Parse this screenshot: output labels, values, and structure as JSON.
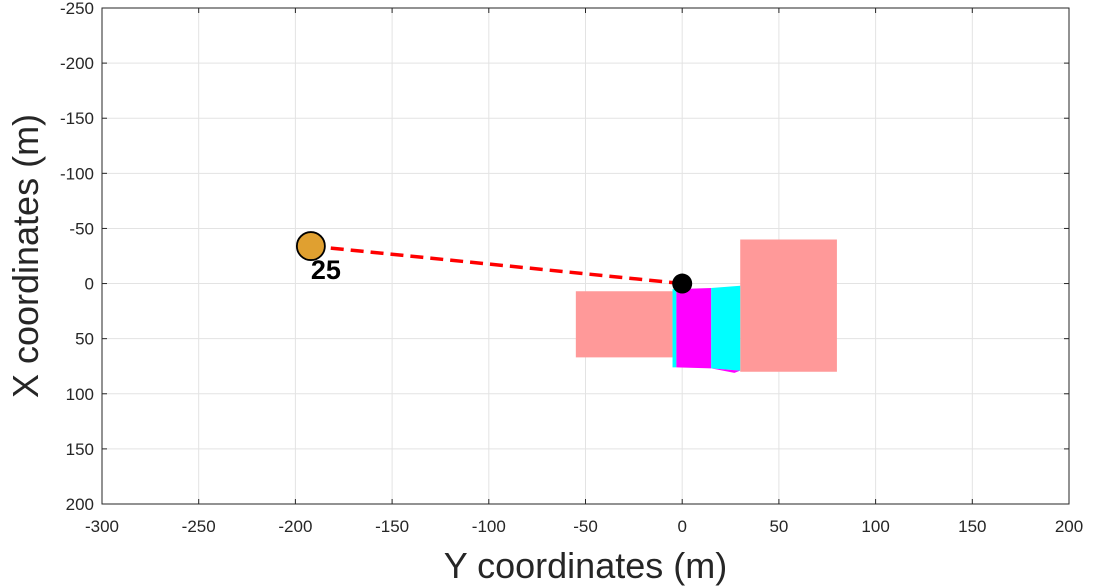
{
  "chart_data": {
    "type": "scatter",
    "title": "",
    "xlabel": "Y coordinates (m)",
    "ylabel": "X coordinates (m)",
    "xlim": [
      -300,
      200
    ],
    "ylim": [
      -250,
      200
    ],
    "y_axis_reversed": true,
    "grid": true,
    "xticks": [
      -300,
      -250,
      -200,
      -150,
      -100,
      -50,
      0,
      50,
      100,
      150,
      200
    ],
    "yticks": [
      -250,
      -200,
      -150,
      -100,
      -50,
      0,
      50,
      100,
      150,
      200
    ],
    "regions": [
      {
        "role": "left-zone",
        "color": "#ff9999",
        "polygon": [
          [
            -55,
            7
          ],
          [
            -5,
            7
          ],
          [
            -5,
            67
          ],
          [
            -55,
            67
          ]
        ]
      },
      {
        "role": "right-zone",
        "color": "#ff9999",
        "polygon": [
          [
            30,
            -40
          ],
          [
            80,
            -40
          ],
          [
            80,
            80
          ],
          [
            30,
            80
          ]
        ]
      },
      {
        "role": "cyan-lane-left",
        "color": "#00ffff",
        "polygon": [
          [
            -5,
            5
          ],
          [
            -3,
            5
          ],
          [
            -3,
            76
          ],
          [
            -5,
            76
          ]
        ]
      },
      {
        "role": "magenta-lane",
        "color": "#ff00ff",
        "polygon": [
          [
            -3,
            5
          ],
          [
            15,
            4
          ],
          [
            15,
            77
          ],
          [
            -3,
            76
          ]
        ]
      },
      {
        "role": "cyan-lane-right",
        "color": "#00ffff",
        "polygon": [
          [
            15,
            4
          ],
          [
            30,
            2
          ],
          [
            30,
            79
          ],
          [
            15,
            77
          ]
        ]
      },
      {
        "role": "magenta-strip",
        "color": "#ff00ff",
        "polygon": [
          [
            15,
            77
          ],
          [
            30,
            79
          ],
          [
            27,
            81
          ]
        ]
      }
    ],
    "path": {
      "color": "#ff0000",
      "style": "dashed",
      "points": [
        [
          -192,
          -34
        ],
        [
          0,
          0
        ]
      ]
    },
    "markers": [
      {
        "role": "origin-dot",
        "x": 0,
        "y": 0,
        "color": "#000000"
      },
      {
        "role": "target",
        "x": -192,
        "y": -34,
        "color": "#e0a030",
        "label": "25"
      }
    ]
  }
}
